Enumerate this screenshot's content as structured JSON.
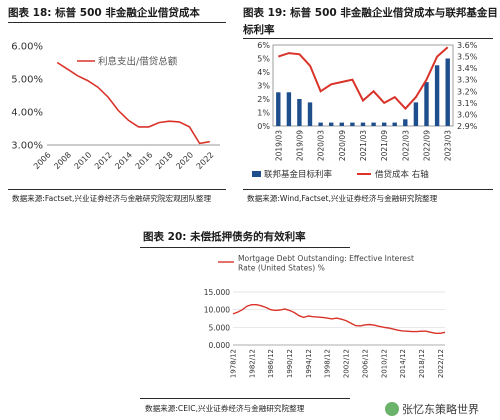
{
  "panels": {
    "p18": {
      "title": "图表 18:  标普 500 非金融企业借贷成本",
      "source": "数据来源:Factset,兴业证券经济与金融研究院宏观团队整理"
    },
    "p19": {
      "title_line1": "图表 19:  标普 500 非金融企业借贷成本与联邦基金目",
      "title_line2": "标利率",
      "source": "数据来源:Wind,Factset,兴业证券经济与金融研究院整理"
    },
    "p20": {
      "title": "图表 20:  未偿抵押债务的有效利率",
      "source": "数据来源:CEIC,兴业证券经济与金融研究院整理"
    }
  },
  "watermark": "张忆东策略世界",
  "chart_data": [
    {
      "type": "line",
      "id": "chart18",
      "legend": "利息支出/借贷总额",
      "color": "#d9332a",
      "ylim": [
        3.0,
        6.0
      ],
      "yticks": [
        "3.00%",
        "4.00%",
        "5.00%",
        "6.00%"
      ],
      "xlim": [
        2006,
        2023
      ],
      "xticks": [
        "2006",
        "2008",
        "2010",
        "2012",
        "2014",
        "2016",
        "2018",
        "2020",
        "2022"
      ],
      "x": [
        2007,
        2008,
        2009,
        2010,
        2011,
        2012,
        2013,
        2014,
        2015,
        2016,
        2017,
        2018,
        2019,
        2020,
        2021,
        2022
      ],
      "y": [
        5.5,
        5.3,
        5.1,
        4.95,
        4.75,
        4.45,
        4.05,
        3.75,
        3.55,
        3.55,
        3.68,
        3.72,
        3.7,
        3.55,
        3.05,
        3.1
      ]
    },
    {
      "type": "bar+line",
      "id": "chart19",
      "legend_bar": "联邦基金目标利率",
      "legend_line": "借贷成本 右轴",
      "bar_color": "#1f4e8c",
      "line_color": "#d9332a",
      "categories": [
        "2019/03",
        "2019/06",
        "2019/09",
        "2019/12",
        "2020/03",
        "2020/06",
        "2020/09",
        "2020/12",
        "2021/03",
        "2021/06",
        "2021/09",
        "2021/12",
        "2022/03",
        "2022/06",
        "2022/09",
        "2022/12",
        "2023/03"
      ],
      "xticks": [
        "2019/03",
        "2019/09",
        "2020/03",
        "2020/09",
        "2021/03",
        "2021/09",
        "2022/03",
        "2022/09",
        "2023/03"
      ],
      "bars": [
        2.5,
        2.5,
        2.0,
        1.75,
        0.25,
        0.25,
        0.25,
        0.25,
        0.25,
        0.25,
        0.25,
        0.25,
        0.5,
        1.75,
        3.25,
        4.5,
        5.0
      ],
      "line": [
        3.5,
        3.53,
        3.52,
        3.42,
        3.2,
        3.26,
        3.28,
        3.3,
        3.12,
        3.2,
        3.1,
        3.15,
        3.05,
        3.15,
        3.3,
        3.5,
        3.58
      ],
      "yleft_lim": [
        0,
        6
      ],
      "yleft_ticks": [
        "0%",
        "1%",
        "2%",
        "3%",
        "4%",
        "5%",
        "6%"
      ],
      "yright_lim": [
        2.9,
        3.6
      ],
      "yright_ticks": [
        "2.9%",
        "3.0%",
        "3.1%",
        "3.2%",
        "3.3%",
        "3.4%",
        "3.5%",
        "3.6%"
      ]
    },
    {
      "type": "line",
      "id": "chart20",
      "legend": "Mortgage Debt Outstanding: Effective Interest Rate (United States) %",
      "color": "#d9332a",
      "ylim": [
        0,
        15
      ],
      "yticks": [
        "0.000",
        "5.000",
        "10.000",
        "15.000"
      ],
      "xlim": [
        1978,
        2023
      ],
      "xticks": [
        "1978/12",
        "1982/12",
        "1986/12",
        "1990/12",
        "1994/12",
        "1998/12",
        "2002/12",
        "2006/12",
        "2010/12",
        "2014/12",
        "2018/12",
        "2022/12"
      ],
      "x": [
        1978,
        1979,
        1980,
        1981,
        1982,
        1983,
        1984,
        1985,
        1986,
        1987,
        1988,
        1989,
        1990,
        1991,
        1992,
        1993,
        1994,
        1995,
        1996,
        1997,
        1998,
        1999,
        2000,
        2001,
        2002,
        2003,
        2004,
        2005,
        2006,
        2007,
        2008,
        2009,
        2010,
        2011,
        2012,
        2013,
        2014,
        2015,
        2016,
        2017,
        2018,
        2019,
        2020,
        2021,
        2022,
        2023
      ],
      "y": [
        8.8,
        9.3,
        10.0,
        11.0,
        11.4,
        11.4,
        11.1,
        10.6,
        10.0,
        9.8,
        9.9,
        10.2,
        9.8,
        9.2,
        8.3,
        7.8,
        8.2,
        8.0,
        7.9,
        7.8,
        7.6,
        7.4,
        7.6,
        7.3,
        6.9,
        6.2,
        5.5,
        5.4,
        5.7,
        5.8,
        5.6,
        5.3,
        5.0,
        4.8,
        4.5,
        4.2,
        4.0,
        3.9,
        3.8,
        3.8,
        3.9,
        3.9,
        3.6,
        3.3,
        3.3,
        3.6
      ]
    }
  ]
}
